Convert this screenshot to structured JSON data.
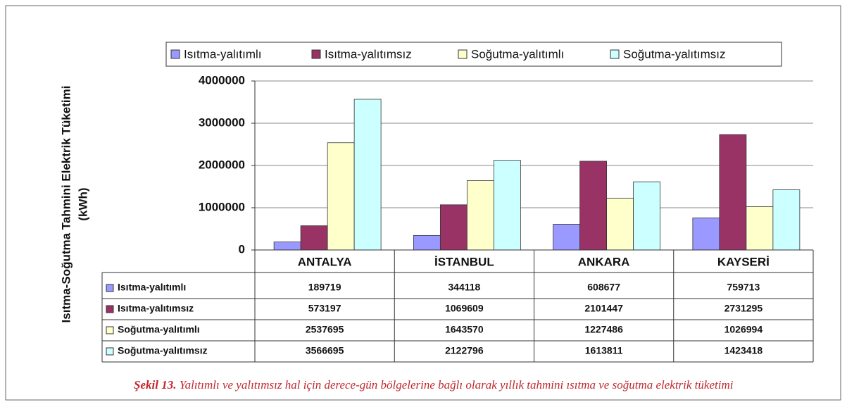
{
  "chart_data": {
    "type": "bar",
    "ylabel": [
      "Isıtma-Soğutma Tahmini Elektrik Tüketimi",
      "(kWh)"
    ],
    "categories": [
      "ANTALYA",
      "İSTANBUL",
      "ANKARA",
      "KAYSERİ"
    ],
    "series": [
      {
        "name": "Isıtma-yalıtımlı",
        "color": "#9999ff",
        "values": [
          189719,
          344118,
          608677,
          759713
        ]
      },
      {
        "name": "Isıtma-yalıtımsız",
        "color": "#993366",
        "values": [
          573197,
          1069609,
          2101447,
          2731295
        ]
      },
      {
        "name": "Soğutma-yalıtımlı",
        "color": "#ffffcc",
        "values": [
          2537695,
          1643570,
          1227486,
          1026994
        ]
      },
      {
        "name": "Soğutma-yalıtımsız",
        "color": "#ccffff",
        "values": [
          3566695,
          2122796,
          1613811,
          1423418
        ]
      }
    ],
    "ylim": [
      0,
      4000000
    ],
    "yticks": [
      0,
      1000000,
      2000000,
      3000000,
      4000000
    ],
    "grid": true,
    "legend": "top",
    "caption": {
      "label": "Şekil 13.",
      "text": "Yalıtımlı ve yalıtımsız hal için derece-gün bölgelerine bağlı olarak yıllık tahmini ısıtma ve soğutma elektrik tüketimi"
    }
  }
}
